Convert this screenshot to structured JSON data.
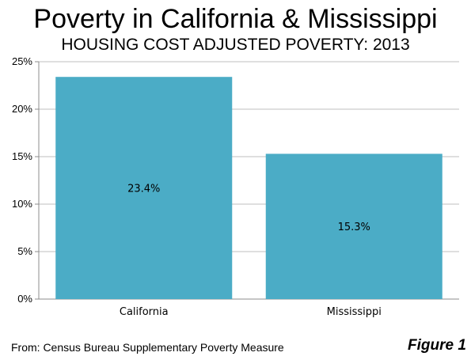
{
  "chart_data": {
    "type": "bar",
    "title": "Poverty in California & Mississippi",
    "subtitle": "HOUSING COST ADJUSTED POVERTY: 2013",
    "categories": [
      "California",
      "Mississippi"
    ],
    "values": [
      23.4,
      15.3
    ],
    "data_labels": [
      "23.4%",
      "15.3%"
    ],
    "ylim": [
      0,
      25
    ],
    "yticks": [
      0,
      5,
      10,
      15,
      20,
      25
    ],
    "ytick_labels": [
      "0%",
      "5%",
      "10%",
      "15%",
      "20%",
      "25%"
    ],
    "xlabel": "",
    "ylabel": "",
    "grid": true,
    "legend": "none",
    "bar_color": "#4bacc6"
  },
  "footer": {
    "source": "From: Census Bureau Supplementary Poverty Measure",
    "figure_label": "Figure 1"
  }
}
